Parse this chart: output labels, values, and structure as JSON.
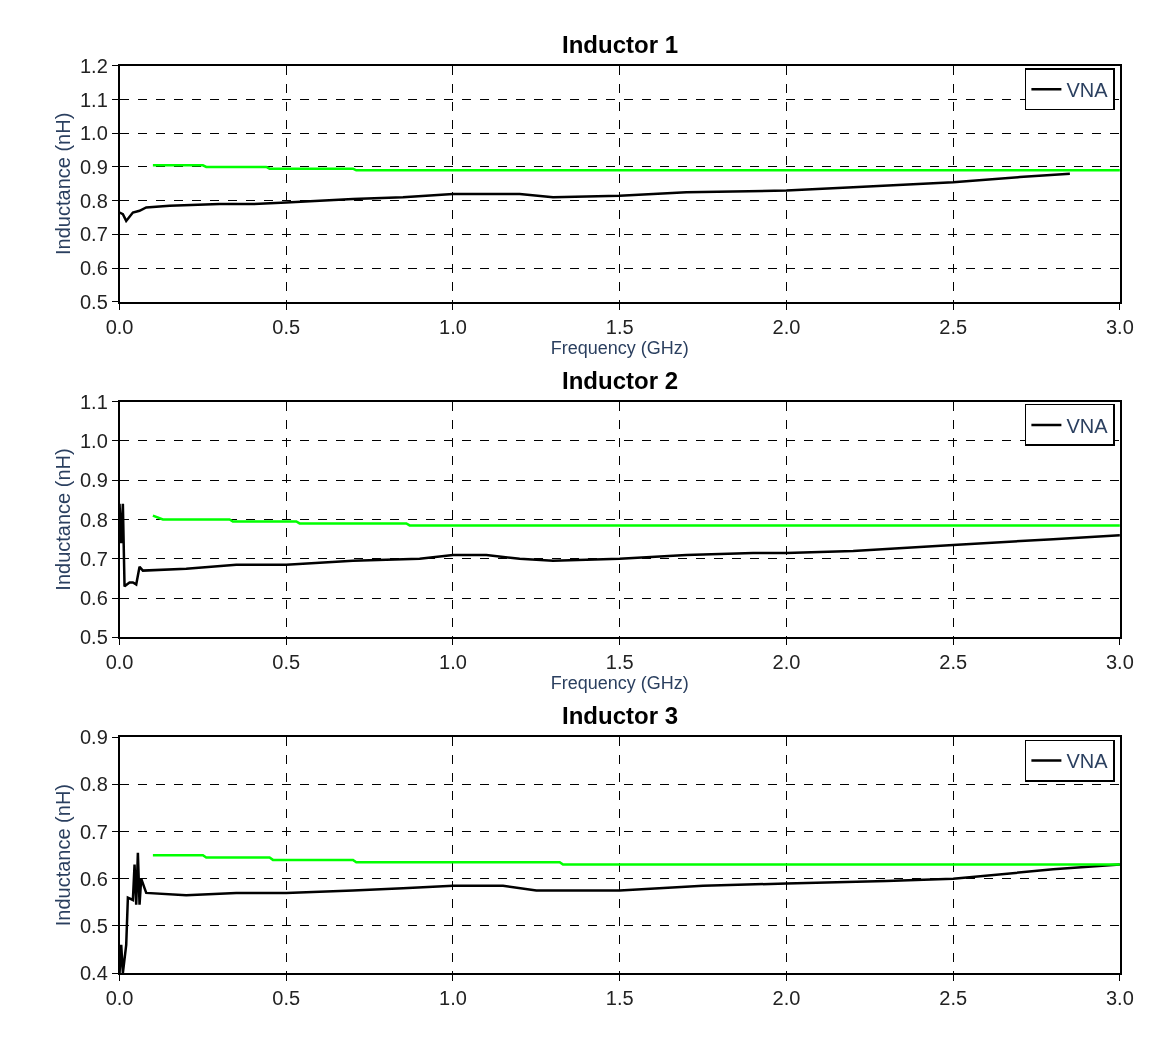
{
  "chart_data": [
    {
      "type": "line",
      "title": "Inductor 1",
      "xlabel": "Frequency (GHz)",
      "ylabel": "Inductance (nH)",
      "xlim": [
        0,
        3
      ],
      "xticks": [
        {
          "value": 0,
          "label": "0.0"
        },
        0.5,
        {
          "value": 1,
          "label": "1.0"
        },
        1.5,
        {
          "value": 2,
          "label": "2.0"
        },
        2.5,
        {
          "value": 3,
          "label": "3.0"
        }
      ],
      "ylim": [
        0.5,
        1.2
      ],
      "yticks": [
        0.5,
        0.6,
        0.7,
        0.8,
        0.9,
        {
          "value": 1,
          "label": "1.0"
        },
        1.1,
        1.2
      ],
      "grid": true,
      "legend": "top right",
      "marker": "none",
      "series": [
        {
          "name": "VNA",
          "color": "#000000",
          "x": [
            0.0,
            0.01,
            0.02,
            0.04,
            0.06,
            0.08,
            0.15,
            0.3,
            0.4,
            0.5,
            0.7,
            0.85,
            1.0,
            1.2,
            1.3,
            1.5,
            1.7,
            2.0,
            2.2,
            2.5,
            2.7,
            2.85
          ],
          "values": [
            0.765,
            0.76,
            0.74,
            0.765,
            0.77,
            0.78,
            0.785,
            0.79,
            0.79,
            0.795,
            0.805,
            0.81,
            0.82,
            0.82,
            0.81,
            0.815,
            0.825,
            0.83,
            0.84,
            0.855,
            0.87,
            0.88
          ]
        },
        {
          "color": "#00ff00",
          "x": [
            0.1,
            0.25,
            0.26,
            0.44,
            0.45,
            0.7,
            0.71,
            3.0
          ],
          "values": [
            0.905,
            0.905,
            0.9,
            0.9,
            0.895,
            0.895,
            0.89,
            0.89
          ]
        }
      ]
    },
    {
      "type": "line",
      "title": "Inductor 2",
      "xlabel": "Frequency (GHz)",
      "ylabel": "Inductance (nH)",
      "xlim": [
        0,
        3
      ],
      "xticks": [
        {
          "value": 0,
          "label": "0.0"
        },
        0.5,
        {
          "value": 1,
          "label": "1.0"
        },
        1.5,
        {
          "value": 2,
          "label": "2.0"
        },
        2.5,
        {
          "value": 3,
          "label": "3.0"
        }
      ],
      "ylim": [
        0.5,
        1.1
      ],
      "yticks": [
        0.5,
        0.6,
        0.7,
        0.8,
        0.9,
        {
          "value": 1,
          "label": "1.0"
        },
        1.1
      ],
      "grid": true,
      "legend": "top right",
      "marker": "none",
      "series": [
        {
          "name": "VNA",
          "color": "#000000",
          "x": [
            0.0,
            0.005,
            0.01,
            0.015,
            0.03,
            0.04,
            0.05,
            0.06,
            0.07,
            0.2,
            0.35,
            0.5,
            0.7,
            0.9,
            1.0,
            1.1,
            1.2,
            1.3,
            1.5,
            1.7,
            1.9,
            2.0,
            2.2,
            2.5,
            2.8,
            3.0
          ],
          "values": [
            0.84,
            0.74,
            0.84,
            0.63,
            0.64,
            0.64,
            0.635,
            0.68,
            0.67,
            0.675,
            0.685,
            0.685,
            0.695,
            0.7,
            0.71,
            0.71,
            0.7,
            0.695,
            0.7,
            0.71,
            0.715,
            0.715,
            0.72,
            0.735,
            0.75,
            0.76
          ]
        },
        {
          "color": "#00ff00",
          "x": [
            0.1,
            0.13,
            0.33,
            0.34,
            0.53,
            0.54,
            0.86,
            0.87,
            3.0
          ],
          "values": [
            0.81,
            0.8,
            0.8,
            0.795,
            0.795,
            0.79,
            0.79,
            0.785,
            0.785
          ]
        }
      ]
    },
    {
      "type": "line",
      "title": "Inductor 3",
      "ylabel": "Inductance (nH)",
      "xlim": [
        0,
        3
      ],
      "xticks": [
        {
          "value": 0,
          "label": "0.0"
        },
        0.5,
        {
          "value": 1,
          "label": "1.0"
        },
        1.5,
        {
          "value": 2,
          "label": "2.0"
        },
        2.5,
        {
          "value": 3,
          "label": "3.0"
        }
      ],
      "ylim": [
        0.4,
        0.9
      ],
      "yticks": [
        0.4,
        0.5,
        0.6,
        0.7,
        0.8,
        0.9
      ],
      "grid": true,
      "legend": "top right",
      "marker": "none",
      "series": [
        {
          "name": "VNA",
          "color": "#000000",
          "x": [
            0.0,
            0.005,
            0.01,
            0.02,
            0.025,
            0.04,
            0.045,
            0.05,
            0.055,
            0.06,
            0.065,
            0.08,
            0.2,
            0.35,
            0.5,
            0.7,
            0.85,
            1.0,
            1.15,
            1.25,
            1.5,
            1.75,
            2.0,
            2.3,
            2.5,
            2.8,
            3.0
          ],
          "values": [
            0.4,
            0.46,
            0.4,
            0.46,
            0.56,
            0.555,
            0.63,
            0.545,
            0.655,
            0.545,
            0.6,
            0.57,
            0.565,
            0.57,
            0.57,
            0.575,
            0.58,
            0.585,
            0.585,
            0.575,
            0.575,
            0.585,
            0.59,
            0.595,
            0.6,
            0.62,
            0.63
          ]
        },
        {
          "color": "#00ff00",
          "x": [
            0.1,
            0.25,
            0.26,
            0.45,
            0.46,
            0.7,
            0.71,
            1.32,
            1.33,
            3.0
          ],
          "values": [
            0.65,
            0.65,
            0.645,
            0.645,
            0.64,
            0.64,
            0.635,
            0.635,
            0.63,
            0.63
          ]
        }
      ]
    }
  ]
}
